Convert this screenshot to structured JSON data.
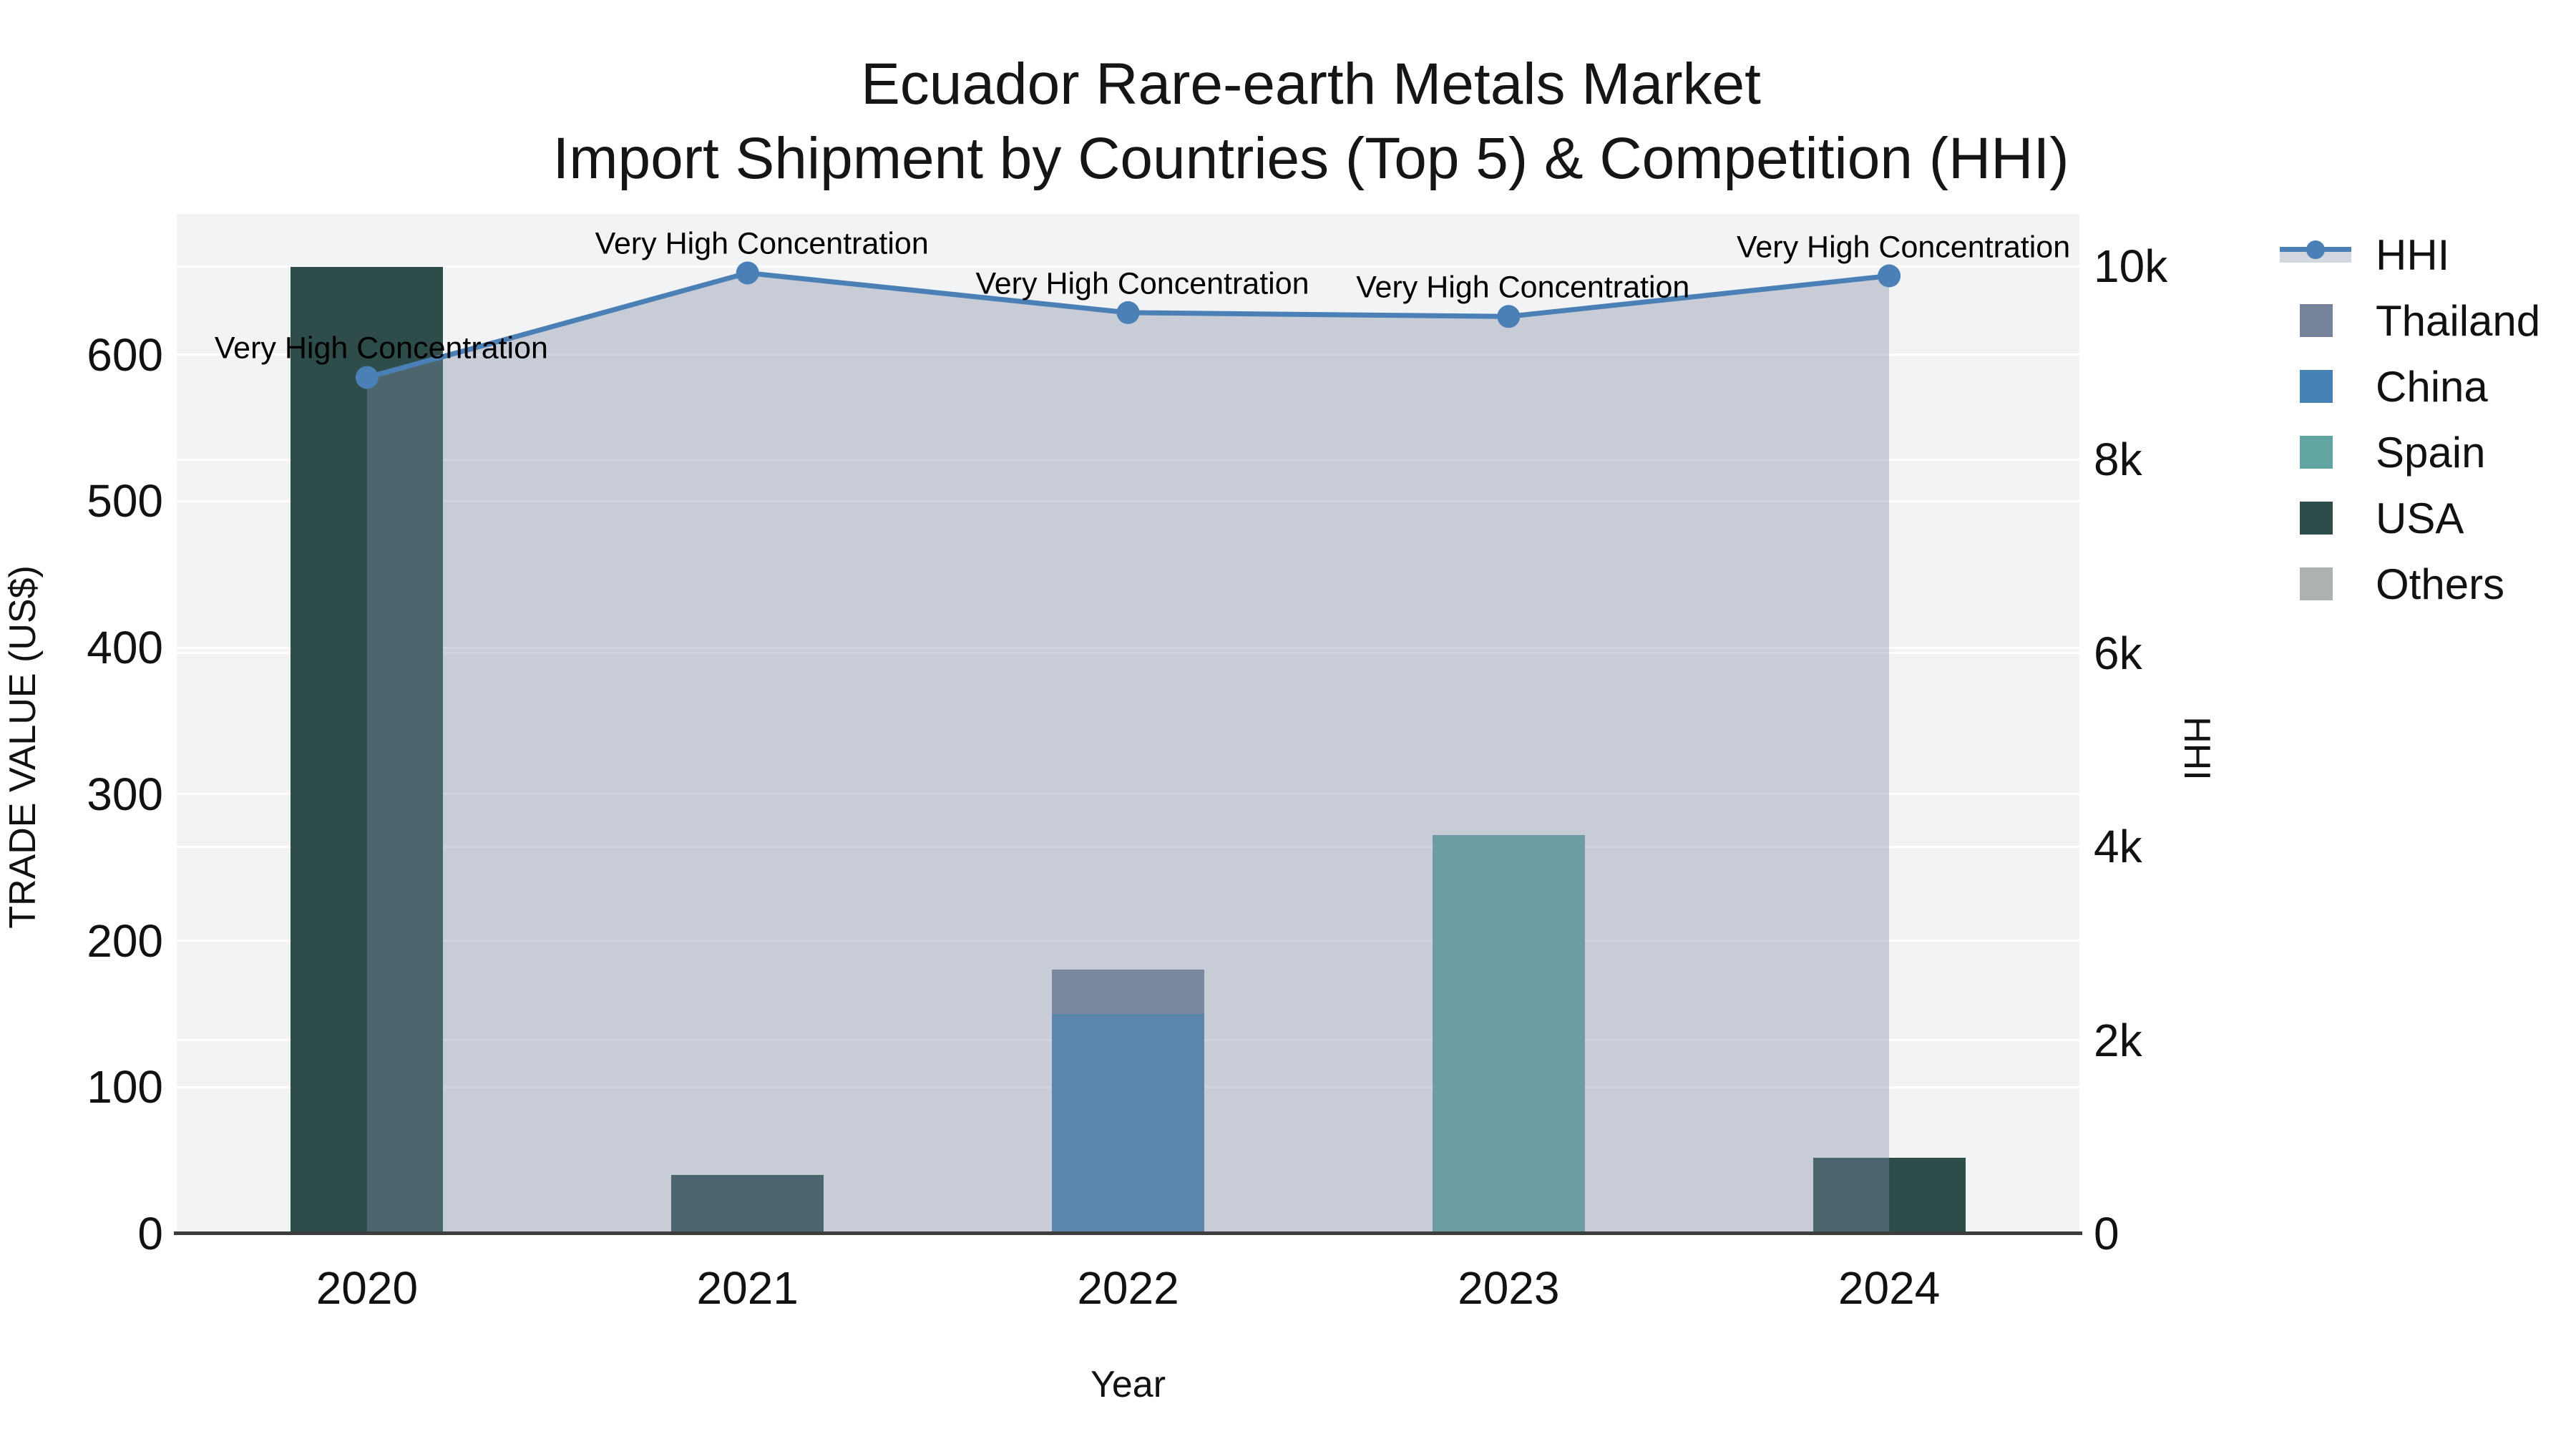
{
  "title": {
    "line1": "Ecuador Rare-earth Metals Market",
    "line2": "Import Shipment by Countries (Top 5) & Competition (HHI)"
  },
  "axes": {
    "x": {
      "title": "Year",
      "ticks": [
        "2020",
        "2021",
        "2022",
        "2023",
        "2024"
      ]
    },
    "y_left": {
      "title": "TRADE VALUE (US$)",
      "ticks": [
        "0",
        "100",
        "200",
        "300",
        "400",
        "500",
        "600"
      ],
      "tick_values": [
        0,
        100,
        200,
        300,
        400,
        500,
        600
      ]
    },
    "y_right": {
      "title": "HHI",
      "ticks": [
        "0",
        "2k",
        "4k",
        "6k",
        "8k",
        "10k"
      ],
      "tick_values": [
        0,
        2000,
        4000,
        6000,
        8000,
        10000
      ]
    }
  },
  "legend": [
    {
      "label": "HHI",
      "type": "line",
      "color": "#4A80B5"
    },
    {
      "label": "Thailand",
      "type": "swatch",
      "color": "#76839B"
    },
    {
      "label": "China",
      "type": "swatch",
      "color": "#4682B4"
    },
    {
      "label": "Spain",
      "type": "swatch",
      "color": "#63A5A2"
    },
    {
      "label": "USA",
      "type": "swatch",
      "color": "#2E4C49"
    },
    {
      "label": "Others",
      "type": "swatch",
      "color": "#ACB1B1"
    }
  ],
  "annotation_text": "Very High Concentration",
  "colors": {
    "hhi_line": "#4A80B5",
    "hhi_area": "rgba(130,142,165,0.38)",
    "plot_background": "#f2f3f4",
    "axis_line": "#3d3d3d"
  },
  "chart_data": {
    "type": "bar",
    "subtype": "stacked-bars-with-line",
    "title": "Ecuador Rare-earth Metals Market — Import Shipment by Countries (Top 5) & Competition (HHI)",
    "categories": [
      "2020",
      "2021",
      "2022",
      "2023",
      "2024"
    ],
    "xlabel": "Year",
    "ylabel_left": "TRADE VALUE (US$)",
    "ylabel_right": "HHI",
    "ylim_left": [
      0,
      696
    ],
    "ylim_right": [
      0,
      10540
    ],
    "grid": true,
    "legend_position": "right",
    "series": [
      {
        "name": "Thailand",
        "axis": "left",
        "color": "#76839B",
        "values": [
          0,
          0,
          30,
          0,
          0
        ]
      },
      {
        "name": "China",
        "axis": "left",
        "color": "#4682B4",
        "values": [
          0,
          0,
          150,
          0,
          0
        ]
      },
      {
        "name": "Spain",
        "axis": "left",
        "color": "#63A5A2",
        "values": [
          0,
          0,
          0,
          272,
          0
        ]
      },
      {
        "name": "USA",
        "axis": "left",
        "color": "#2E4C49",
        "values": [
          660,
          40,
          0,
          0,
          52
        ]
      },
      {
        "name": "Others",
        "axis": "left",
        "color": "#ACB1B1",
        "values": [
          0,
          0,
          0,
          0,
          0
        ]
      }
    ],
    "line_series": {
      "name": "HHI",
      "axis": "right",
      "color": "#4A80B5",
      "values": [
        8850,
        9930,
        9520,
        9480,
        9900
      ],
      "area_fill": true,
      "point_annotations": [
        "Very High Concentration",
        "Very High Concentration",
        "Very High Concentration",
        "Very High Concentration",
        "Very High Concentration"
      ]
    },
    "stack_order_bottom_to_top": [
      "USA",
      "China",
      "Spain",
      "Thailand",
      "Others"
    ]
  }
}
